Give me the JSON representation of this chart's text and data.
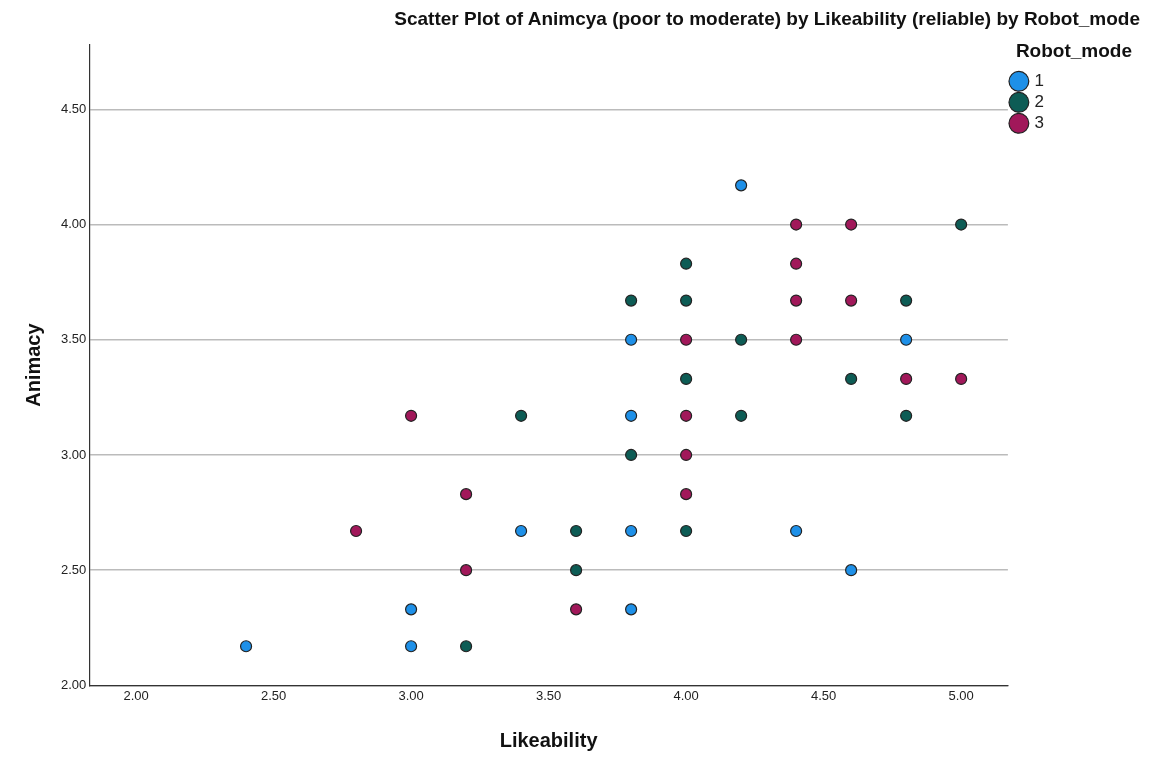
{
  "chart_data": {
    "type": "scatter",
    "title": "Scatter Plot of Animcya (poor to moderate) by Likeability (reliable) by Robot_mode",
    "xlabel": "Likeability",
    "ylabel": "Animacy",
    "legend_title": "Robot_mode",
    "xlim": [
      1.83,
      5.17
    ],
    "ylim": [
      2.0,
      4.78
    ],
    "xticks": [
      {
        "value": 2.0,
        "label": "2.00"
      },
      {
        "value": 2.5,
        "label": "2.50"
      },
      {
        "value": 3.0,
        "label": "3.00"
      },
      {
        "value": 3.5,
        "label": "3.50"
      },
      {
        "value": 4.0,
        "label": "4.00"
      },
      {
        "value": 4.5,
        "label": "4.50"
      },
      {
        "value": 5.0,
        "label": "5.00"
      }
    ],
    "yticks": [
      {
        "value": 2.0,
        "label": "2.00"
      },
      {
        "value": 2.5,
        "label": "2.50"
      },
      {
        "value": 3.0,
        "label": "3.00"
      },
      {
        "value": 3.5,
        "label": "3.50"
      },
      {
        "value": 4.0,
        "label": "4.00"
      },
      {
        "value": 4.5,
        "label": "4.50"
      }
    ],
    "grid": "y",
    "legend": "top right",
    "marker": "circle",
    "series": [
      {
        "name": "1",
        "color": "#1e90e8",
        "x": [
          2.4,
          3.0,
          3.0,
          3.4,
          3.8,
          3.8,
          3.8,
          3.8,
          4.2,
          4.4,
          4.6,
          4.8
        ],
        "values": [
          2.17,
          2.33,
          2.17,
          2.67,
          3.5,
          3.17,
          2.67,
          2.33,
          4.17,
          2.67,
          2.5,
          3.5
        ]
      },
      {
        "name": "2",
        "color": "#0d5c55",
        "x": [
          3.2,
          3.4,
          3.6,
          3.6,
          3.8,
          3.8,
          4.0,
          4.0,
          4.0,
          4.0,
          4.2,
          4.2,
          4.6,
          4.8,
          4.8,
          5.0
        ],
        "values": [
          2.17,
          3.17,
          2.67,
          2.5,
          3.67,
          3.0,
          3.83,
          3.67,
          3.33,
          2.67,
          3.5,
          3.17,
          3.33,
          3.67,
          3.17,
          4.0
        ]
      },
      {
        "name": "3",
        "color": "#a1185a",
        "x": [
          2.8,
          3.0,
          3.2,
          3.2,
          3.6,
          4.0,
          4.0,
          4.0,
          4.0,
          4.4,
          4.4,
          4.4,
          4.4,
          4.6,
          4.6,
          4.8,
          5.0
        ],
        "values": [
          2.67,
          3.17,
          2.83,
          2.5,
          2.33,
          3.5,
          3.17,
          3.0,
          2.83,
          4.0,
          3.83,
          3.67,
          3.5,
          4.0,
          3.67,
          3.33,
          3.33
        ]
      }
    ]
  }
}
